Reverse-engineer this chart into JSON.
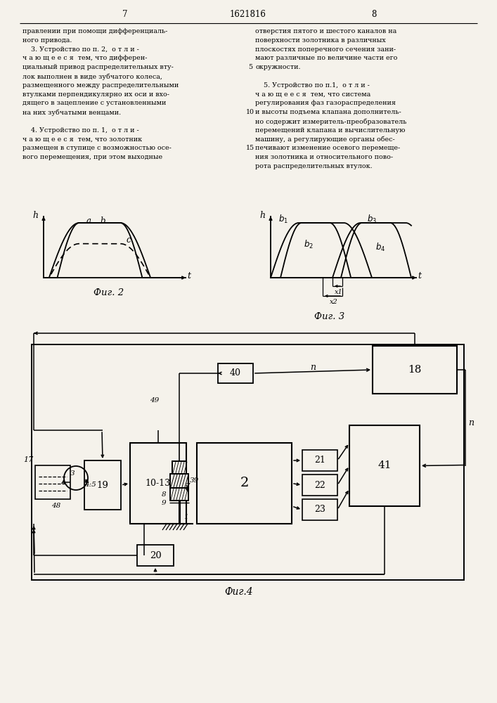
{
  "title": "1621816",
  "page_left": "7",
  "page_right": "8",
  "text_col1": [
    "правлении при помощи дифференциаль-",
    "ного привода.",
    "    3. Устройство по п. 2,  о т л и -",
    "ч а ю щ е е с я  тем, что дифферен-",
    "циальный привод распределительных вту-",
    "лок выполнен в виде зубчатого колеса,",
    "размещенного между распределительными",
    "втулками перпендикулярно их оси и вхо-",
    "дящего в зацепление с установленными",
    "на них зубчатыми венцами.",
    "",
    "    4. Устройство по п. 1,  о т л и -",
    "ч а ю щ е е с я  тем, что золотник",
    "размещен в ступице с возможностью осе-",
    "вого перемещения, при этом выходные"
  ],
  "text_col2": [
    "отверстия пятого и шестого каналов на",
    "поверхности золотника в различных",
    "плоскостях поперечного сечения зани-",
    "мают различные по величине части его",
    "окружности.",
    "",
    "    5. Устройство по п.1,  о т л и -",
    "ч а ю щ е е с я  тем, что система",
    "регулирования фаз газораспределения",
    "и высоты подъема клапана дополнитель-",
    "но содержит измеритель-преобразователь",
    "перемещений клапана и вычислительную",
    "машину, а регулирующие органы обес-",
    "печивают изменение осевого перемеще-",
    "ния золотника и относительного пово-",
    "рота распределительных втулок."
  ],
  "num5": "5",
  "num10": "10",
  "num15": "15",
  "fig2_cap": "Фиг. 2",
  "fig3_cap": "Фиг. 3",
  "fig4_cap": "Фиг.4",
  "bg": "#f5f2eb"
}
